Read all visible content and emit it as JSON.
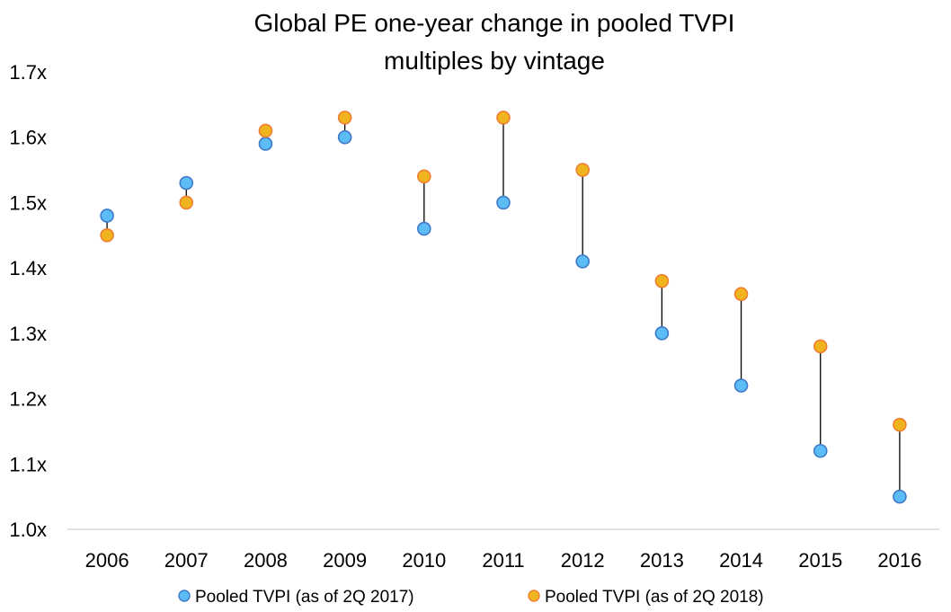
{
  "chart_data": {
    "type": "scatter",
    "title_lines": [
      "Global PE one-year change in pooled TVPI",
      "multiples by vintage"
    ],
    "categories": [
      "2006",
      "2007",
      "2008",
      "2009",
      "2010",
      "2011",
      "2012",
      "2013",
      "2014",
      "2015",
      "2016"
    ],
    "y_tick_labels": [
      "1.0x",
      "1.1x",
      "1.2x",
      "1.3x",
      "1.4x",
      "1.5x",
      "1.6x",
      "1.7x"
    ],
    "ylim": [
      1.0,
      1.7
    ],
    "grid": false,
    "legend_position": "bottom",
    "connector_color": "#000000",
    "series": [
      {
        "name": "Pooled TVPI (as of 2Q 2017)",
        "fill": "#5cbcf5",
        "stroke": "#3f79c9",
        "values": [
          1.48,
          1.53,
          1.59,
          1.6,
          1.46,
          1.5,
          1.41,
          1.3,
          1.22,
          1.12,
          1.05
        ]
      },
      {
        "name": "Pooled TVPI (as of 2Q 2018)",
        "fill": "#f0b41e",
        "stroke": "#ee7f32",
        "values": [
          1.45,
          1.5,
          1.61,
          1.63,
          1.54,
          1.63,
          1.55,
          1.38,
          1.36,
          1.28,
          1.16
        ]
      }
    ]
  }
}
